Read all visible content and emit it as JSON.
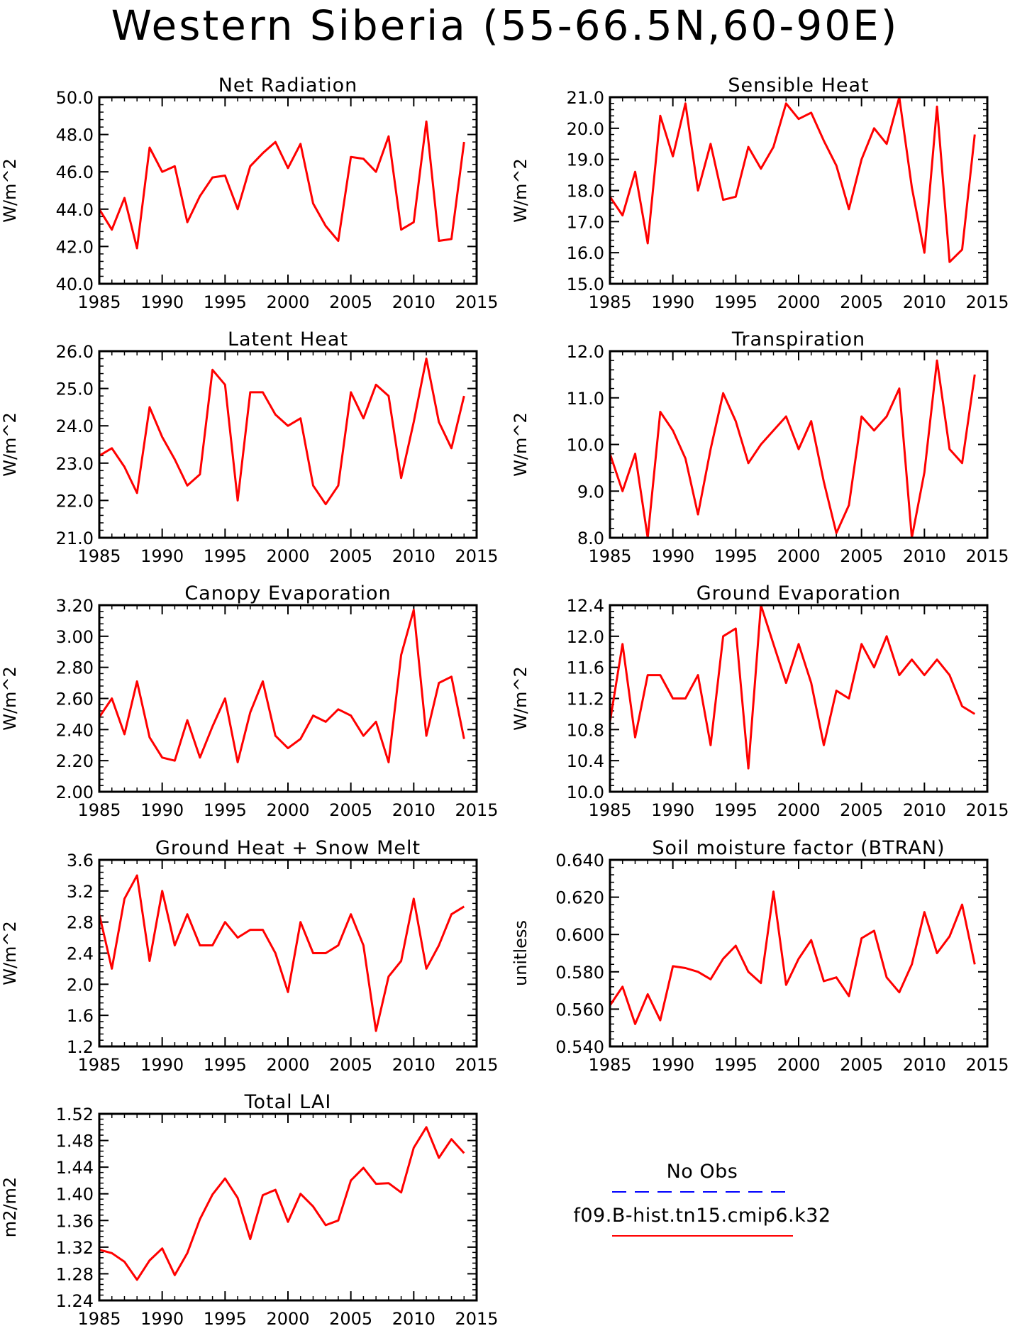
{
  "figure": {
    "title": "Western Siberia (55-66.5N,60-90E)"
  },
  "legend": {
    "entries": [
      {
        "label": "No Obs",
        "color": "#0000ff",
        "style": "dashed"
      },
      {
        "label": "f09.B-hist.tn15.cmip6.k32",
        "color": "#ff0000",
        "style": "solid"
      }
    ]
  },
  "chart_data": [
    {
      "type": "line",
      "title": "Net Radiation",
      "ylabel": "W/m^2",
      "xlim": [
        1985,
        2015
      ],
      "ylim": [
        40,
        50
      ],
      "xticks": [
        1985,
        1990,
        1995,
        2000,
        2005,
        2010,
        2015
      ],
      "yticks": [
        "40.0",
        "42.0",
        "44.0",
        "46.0",
        "48.0",
        "50.0"
      ],
      "color": "#ff0000",
      "x_start": 1985,
      "values": [
        44.0,
        42.9,
        44.6,
        41.9,
        47.3,
        46.0,
        46.3,
        43.3,
        44.7,
        45.7,
        45.8,
        44.0,
        46.3,
        47.0,
        47.6,
        46.2,
        47.5,
        44.3,
        43.1,
        42.3,
        46.8,
        46.7,
        46.0,
        47.9,
        42.9,
        43.3,
        48.7,
        42.3,
        42.4,
        47.6
      ]
    },
    {
      "type": "line",
      "title": "Sensible Heat",
      "ylabel": "W/m^2",
      "xlim": [
        1985,
        2015
      ],
      "ylim": [
        15,
        21
      ],
      "xticks": [
        1985,
        1990,
        1995,
        2000,
        2005,
        2010,
        2015
      ],
      "yticks": [
        "15.0",
        "16.0",
        "17.0",
        "18.0",
        "19.0",
        "20.0",
        "21.0"
      ],
      "color": "#ff0000",
      "x_start": 1985,
      "values": [
        17.8,
        17.2,
        18.6,
        16.3,
        20.4,
        19.1,
        20.8,
        18.0,
        19.5,
        17.7,
        17.8,
        19.4,
        18.7,
        19.4,
        20.8,
        20.3,
        20.5,
        19.6,
        18.8,
        17.4,
        19.0,
        20.0,
        19.5,
        21.0,
        18.1,
        16.0,
        20.7,
        15.7,
        16.1,
        19.8
      ]
    },
    {
      "type": "line",
      "title": "Latent Heat",
      "ylabel": "W/m^2",
      "xlim": [
        1985,
        2015
      ],
      "ylim": [
        21,
        26
      ],
      "xticks": [
        1985,
        1990,
        1995,
        2000,
        2005,
        2010,
        2015
      ],
      "yticks": [
        "21.0",
        "22.0",
        "23.0",
        "24.0",
        "25.0",
        "26.0"
      ],
      "color": "#ff0000",
      "x_start": 1985,
      "values": [
        23.2,
        23.4,
        22.9,
        22.2,
        24.5,
        23.7,
        23.1,
        22.4,
        22.7,
        25.5,
        25.1,
        22.0,
        24.9,
        24.9,
        24.3,
        24.0,
        24.2,
        22.4,
        21.9,
        22.4,
        24.9,
        24.2,
        25.1,
        24.8,
        22.6,
        24.1,
        25.8,
        24.1,
        23.4,
        24.8
      ]
    },
    {
      "type": "line",
      "title": "Transpiration",
      "ylabel": "W/m^2",
      "xlim": [
        1985,
        2015
      ],
      "ylim": [
        8,
        12
      ],
      "xticks": [
        1985,
        1990,
        1995,
        2000,
        2005,
        2010,
        2015
      ],
      "yticks": [
        "8.0",
        "9.0",
        "10.0",
        "11.0",
        "12.0"
      ],
      "color": "#ff0000",
      "x_start": 1985,
      "values": [
        9.8,
        9.0,
        9.8,
        8.0,
        10.7,
        10.3,
        9.7,
        8.5,
        9.9,
        11.1,
        10.5,
        9.6,
        10.0,
        10.3,
        10.6,
        9.9,
        10.5,
        9.2,
        8.1,
        8.7,
        10.6,
        10.3,
        10.6,
        11.2,
        8.0,
        9.4,
        11.8,
        9.9,
        9.6,
        11.5
      ]
    },
    {
      "type": "line",
      "title": "Canopy Evaporation",
      "ylabel": "W/m^2",
      "xlim": [
        1985,
        2015
      ],
      "ylim": [
        2.0,
        3.2
      ],
      "xticks": [
        1985,
        1990,
        1995,
        2000,
        2005,
        2010,
        2015
      ],
      "yticks": [
        "2.00",
        "2.20",
        "2.40",
        "2.60",
        "2.80",
        "3.00",
        "3.20"
      ],
      "color": "#ff0000",
      "x_start": 1985,
      "values": [
        2.48,
        2.6,
        2.37,
        2.71,
        2.35,
        2.22,
        2.2,
        2.46,
        2.22,
        2.42,
        2.6,
        2.19,
        2.51,
        2.71,
        2.36,
        2.28,
        2.34,
        2.49,
        2.45,
        2.53,
        2.49,
        2.36,
        2.45,
        2.19,
        2.88,
        3.17,
        2.36,
        2.7,
        2.74,
        2.34
      ]
    },
    {
      "type": "line",
      "title": "Ground Evaporation",
      "ylabel": "W/m^2",
      "xlim": [
        1985,
        2015
      ],
      "ylim": [
        10.0,
        12.4
      ],
      "xticks": [
        1985,
        1990,
        1995,
        2000,
        2005,
        2010,
        2015
      ],
      "yticks": [
        "10.0",
        "10.4",
        "10.8",
        "11.2",
        "11.6",
        "12.0",
        "12.4"
      ],
      "color": "#ff0000",
      "x_start": 1985,
      "values": [
        10.9,
        11.9,
        10.7,
        11.5,
        11.5,
        11.2,
        11.2,
        11.5,
        10.6,
        12.0,
        12.1,
        10.3,
        12.4,
        11.9,
        11.4,
        11.9,
        11.4,
        10.6,
        11.3,
        11.2,
        11.9,
        11.6,
        12.0,
        11.5,
        11.7,
        11.5,
        11.7,
        11.5,
        11.1,
        11.0
      ]
    },
    {
      "type": "line",
      "title": "Ground Heat + Snow Melt",
      "ylabel": "W/m^2",
      "xlim": [
        1985,
        2015
      ],
      "ylim": [
        1.2,
        3.6
      ],
      "xticks": [
        1985,
        1990,
        1995,
        2000,
        2005,
        2010,
        2015
      ],
      "yticks": [
        "1.2",
        "1.6",
        "2.0",
        "2.4",
        "2.8",
        "3.2",
        "3.6"
      ],
      "color": "#ff0000",
      "x_start": 1985,
      "values": [
        2.9,
        2.2,
        3.1,
        3.4,
        2.3,
        3.2,
        2.5,
        2.9,
        2.5,
        2.5,
        2.8,
        2.6,
        2.7,
        2.7,
        2.4,
        1.9,
        2.8,
        2.4,
        2.4,
        2.5,
        2.9,
        2.5,
        1.4,
        2.1,
        2.3,
        3.1,
        2.2,
        2.5,
        2.9,
        3.0
      ]
    },
    {
      "type": "line",
      "title": "Soil moisture factor (BTRAN)",
      "ylabel": "unitless",
      "xlim": [
        1985,
        2015
      ],
      "ylim": [
        0.54,
        0.64
      ],
      "xticks": [
        1985,
        1990,
        1995,
        2000,
        2005,
        2010,
        2015
      ],
      "yticks": [
        "0.540",
        "0.560",
        "0.580",
        "0.600",
        "0.620",
        "0.640"
      ],
      "color": "#ff0000",
      "x_start": 1985,
      "values": [
        0.562,
        0.572,
        0.552,
        0.568,
        0.554,
        0.583,
        0.582,
        0.58,
        0.576,
        0.587,
        0.594,
        0.58,
        0.574,
        0.623,
        0.573,
        0.587,
        0.597,
        0.575,
        0.577,
        0.567,
        0.598,
        0.602,
        0.577,
        0.569,
        0.584,
        0.612,
        0.59,
        0.599,
        0.616,
        0.584
      ]
    },
    {
      "type": "line",
      "title": "Total LAI",
      "ylabel": "m2/m2",
      "xlim": [
        1985,
        2015
      ],
      "ylim": [
        1.24,
        1.52
      ],
      "xticks": [
        1985,
        1990,
        1995,
        2000,
        2005,
        2010,
        2015
      ],
      "yticks": [
        "1.24",
        "1.28",
        "1.32",
        "1.36",
        "1.40",
        "1.44",
        "1.48",
        "1.52"
      ],
      "color": "#ff0000",
      "x_start": 1985,
      "values": [
        1.316,
        1.311,
        1.298,
        1.271,
        1.3,
        1.318,
        1.278,
        1.311,
        1.362,
        1.399,
        1.423,
        1.394,
        1.332,
        1.398,
        1.406,
        1.358,
        1.4,
        1.381,
        1.353,
        1.36,
        1.42,
        1.439,
        1.415,
        1.416,
        1.402,
        1.469,
        1.5,
        1.454,
        1.482,
        1.461
      ]
    }
  ]
}
